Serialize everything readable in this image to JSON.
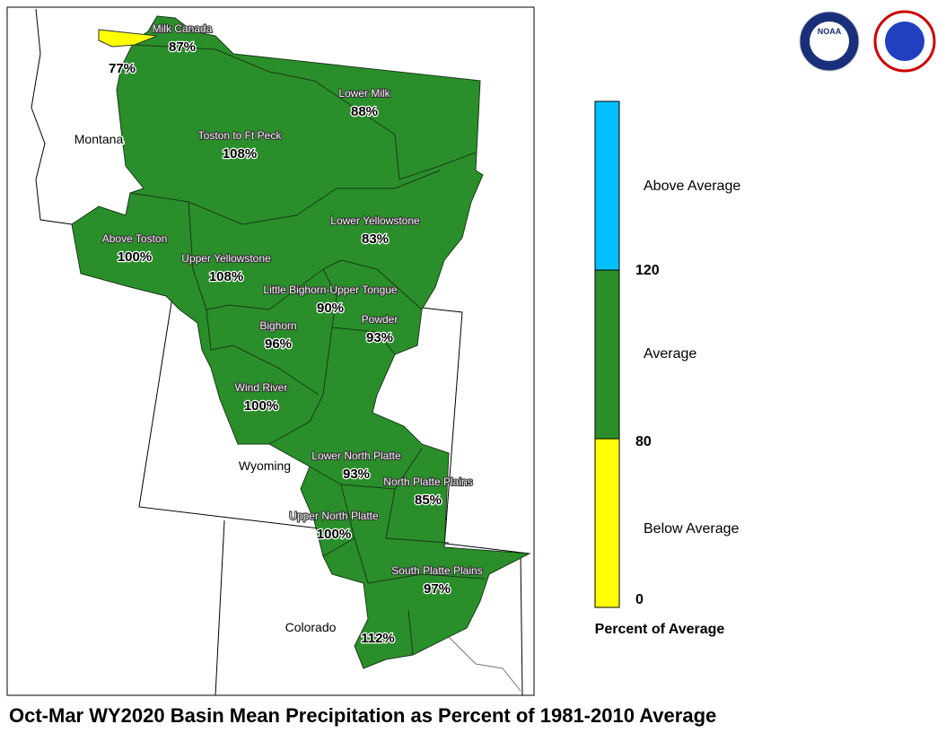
{
  "title": "Oct-Mar WY2020 Basin Mean Precipitation as Percent of 1981-2010 Average",
  "states": [
    "Montana",
    "Wyoming",
    "Colorado"
  ],
  "logos": [
    "NOAA"
  ],
  "basins": [
    {
      "name": "Milk Canada",
      "percent": "87%"
    },
    {
      "name": null,
      "percent": "77%"
    },
    {
      "name": "Lower Milk",
      "percent": "88%"
    },
    {
      "name": "Toston to Ft Peck",
      "percent": "108%"
    },
    {
      "name": "Above Toston",
      "percent": "100%"
    },
    {
      "name": "Lower Yellowstone",
      "percent": "83%"
    },
    {
      "name": "Upper Yellowstone",
      "percent": "108%"
    },
    {
      "name": "Little Bighorn-Upper Tongue",
      "percent": "90%"
    },
    {
      "name": "Bighorn",
      "percent": "96%"
    },
    {
      "name": "Powder",
      "percent": "93%"
    },
    {
      "name": "Wind River",
      "percent": "100%"
    },
    {
      "name": "Lower North Platte",
      "percent": "93%"
    },
    {
      "name": "North Platte Plains",
      "percent": "85%"
    },
    {
      "name": "Upper North Platte",
      "percent": "100%"
    },
    {
      "name": "South Platte Plains",
      "percent": "97%"
    },
    {
      "name": null,
      "percent": "112%"
    }
  ],
  "legend": {
    "title": "Percent of Average",
    "classes": [
      "Above Average",
      "Average",
      "Below Average"
    ],
    "ticks": [
      120,
      80,
      0
    ]
  }
}
